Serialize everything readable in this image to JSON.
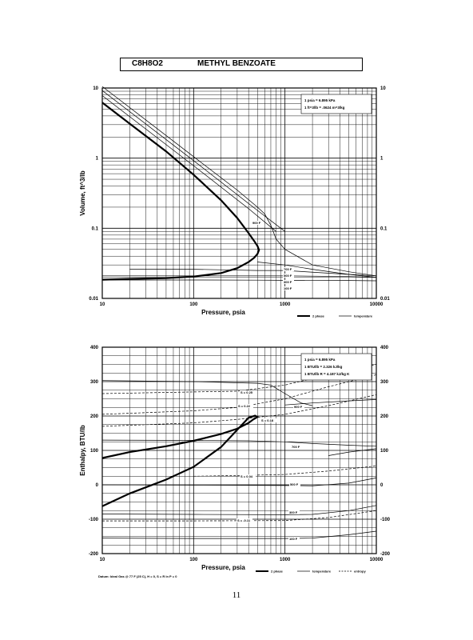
{
  "title": {
    "formula": "C8H8O2",
    "name": "METHYL BENZOATE"
  },
  "page_number": "11",
  "chart_data": [
    {
      "type": "line",
      "xlabel": "Pressure,  psia",
      "ylabel": "Volume,  ft^3/lb",
      "xscale": "log",
      "yscale": "log",
      "xlim": [
        10,
        10000
      ],
      "ylim": [
        0.01,
        10
      ],
      "x_ticks": [
        "10",
        "100",
        "1000",
        "10000"
      ],
      "y_ticks": [
        "0.01",
        "0.1",
        "1",
        "10"
      ],
      "grid": true,
      "notes": [
        "1 psia  =  6.895 kPa",
        "1 ft^3/lb  =  .0624 m^3/kg"
      ],
      "curve_labels": [
        "900 F",
        "700 F",
        "500 F",
        "300 F",
        "100 F"
      ],
      "legend": [
        "2 phase",
        "temperature"
      ],
      "series": [
        {
          "kind": "2 phase",
          "x": [
            10,
            20,
            50,
            100,
            200,
            300,
            400,
            460,
            500,
            520,
            500,
            460,
            400,
            300,
            200,
            100,
            50,
            20,
            10
          ],
          "y": [
            6.2,
            3.1,
            1.25,
            0.58,
            0.25,
            0.14,
            0.085,
            0.066,
            0.056,
            0.049,
            0.043,
            0.038,
            0.033,
            0.027,
            0.023,
            0.0205,
            0.0195,
            0.019,
            0.0185
          ]
        },
        {
          "kind": "temperature",
          "label": "900 F",
          "x": [
            10,
            100,
            300,
            500,
            600,
            700,
            800,
            1000,
            2000,
            5000,
            10000
          ],
          "y": [
            10.5,
            1.05,
            0.35,
            0.2,
            0.16,
            0.11,
            0.07,
            0.05,
            0.03,
            0.024,
            0.021
          ]
        },
        {
          "kind": "temperature",
          "x": [
            10,
            100,
            500,
            1000
          ],
          "y": [
            9.2,
            0.92,
            0.18,
            0.09
          ]
        },
        {
          "kind": "temperature",
          "x": [
            10,
            100,
            400,
            800
          ],
          "y": [
            7.8,
            0.78,
            0.19,
            0.09
          ]
        },
        {
          "kind": "temperature",
          "label": "700 F",
          "x": [
            500,
            1000,
            2000,
            5000,
            10000
          ],
          "y": [
            0.033,
            0.03,
            0.026,
            0.022,
            0.02
          ]
        },
        {
          "kind": "temperature",
          "label": "500 F",
          "x": [
            20,
            100,
            500,
            1000,
            5000,
            10000
          ],
          "y": [
            0.026,
            0.026,
            0.025,
            0.025,
            0.022,
            0.021
          ]
        },
        {
          "kind": "temperature",
          "label": "300 F",
          "x": [
            10,
            100,
            500,
            1000,
            5000,
            10000
          ],
          "y": [
            0.021,
            0.021,
            0.021,
            0.021,
            0.0205,
            0.02
          ]
        },
        {
          "kind": "temperature",
          "label": "100 F",
          "x": [
            10,
            100,
            500,
            1000,
            5000,
            10000
          ],
          "y": [
            0.0183,
            0.0183,
            0.0182,
            0.0181,
            0.018,
            0.0178
          ]
        }
      ]
    },
    {
      "type": "line",
      "xlabel": "Pressure,  psia",
      "ylabel": "Enthalpy,  BTU/lb",
      "xscale": "log",
      "xlim": [
        10,
        10000
      ],
      "ylim": [
        -200,
        400
      ],
      "x_ticks": [
        "10",
        "100",
        "1000",
        "10000"
      ],
      "y_ticks": [
        "-200",
        "-100",
        "0",
        "100",
        "200",
        "300",
        "400"
      ],
      "grid": true,
      "notes": [
        "1 psia  =  6.895 kPa",
        "1 BTU/lb  =  2.326 kJ/kg",
        "1 BTU/lb R  =  4.187 kJ/kg K"
      ],
      "curve_labels": [
        "900 F",
        "700 F",
        "500 F",
        "300 F",
        "100 F"
      ],
      "entropy_labels": [
        "S = 0.25",
        "S = 0.22",
        "S = 0.18",
        "S = 0.04",
        "S = -0.11"
      ],
      "datum": "Datum: Ideal Gas @ 77 F (25 C),  H = 0,  S = R ln P = 0",
      "legend": [
        "2 phase",
        "temperature",
        "entropy"
      ],
      "series": [
        {
          "kind": "2 phase",
          "x": [
            10,
            20,
            50,
            100,
            200,
            300,
            400,
            450,
            500,
            470,
            400,
            300,
            200,
            100,
            50,
            20,
            10
          ],
          "y": [
            78,
            95,
            112,
            128,
            148,
            163,
            180,
            190,
            197,
            201,
            195,
            160,
            110,
            52,
            15,
            -25,
            -62
          ]
        },
        {
          "kind": "temperature",
          "label": "900 F",
          "x": [
            10,
            100,
            500,
            700,
            1000,
            1500,
            2000
          ],
          "y": [
            303,
            300,
            295,
            290,
            265,
            238,
            230
          ]
        },
        {
          "kind": "temperature",
          "x": [
            1000,
            2000,
            5000,
            10000
          ],
          "y": [
            232,
            238,
            244,
            248
          ]
        },
        {
          "kind": "temperature",
          "label": "700 F",
          "x": [
            10,
            100,
            400,
            1000,
            2000,
            5000,
            10000
          ],
          "y": [
            130,
            129,
            128,
            125,
            120,
            115,
            112
          ]
        },
        {
          "kind": "temperature",
          "x": [
            3000,
            5000,
            10000
          ],
          "y": [
            85,
            95,
            105
          ]
        },
        {
          "kind": "temperature",
          "label": "500 F",
          "x": [
            10,
            100,
            1000,
            2000,
            5000,
            10000
          ],
          "y": [
            0,
            -1,
            -2,
            -3,
            5,
            20
          ]
        },
        {
          "kind": "temperature",
          "label": "300 F",
          "x": [
            10,
            100,
            1000,
            2000,
            5000,
            10000
          ],
          "y": [
            -85,
            -86,
            -87,
            -86,
            -75,
            -60
          ]
        },
        {
          "kind": "temperature",
          "label": "100 F",
          "x": [
            10,
            100,
            1000,
            2000,
            5000,
            10000
          ],
          "y": [
            -155,
            -156,
            -156,
            -155,
            -145,
            -135
          ]
        },
        {
          "kind": "entropy",
          "label": "S = 0.25",
          "x": [
            10,
            100,
            300,
            1000,
            3000,
            10000
          ],
          "y": [
            265,
            270,
            272,
            290,
            320,
            350
          ]
        },
        {
          "kind": "entropy",
          "label": "S = 0.22",
          "x": [
            10,
            100,
            300,
            1000,
            3000,
            10000
          ],
          "y": [
            205,
            215,
            225,
            250,
            285,
            320
          ]
        },
        {
          "kind": "entropy",
          "label": "S = 0.18",
          "x": [
            10,
            100,
            300,
            1000,
            3000,
            10000
          ],
          "y": [
            170,
            180,
            190,
            205,
            230,
            262
          ]
        },
        {
          "kind": "entropy",
          "label": "S = 0.04",
          "x": [
            100,
            300,
            1000,
            3000,
            10000
          ],
          "y": [
            25,
            27,
            30,
            40,
            55
          ]
        },
        {
          "kind": "entropy",
          "label": "S = -0.11",
          "x": [
            10,
            100,
            1000,
            3000,
            10000
          ],
          "y": [
            -105,
            -105,
            -104,
            -95,
            -75
          ]
        }
      ]
    }
  ]
}
